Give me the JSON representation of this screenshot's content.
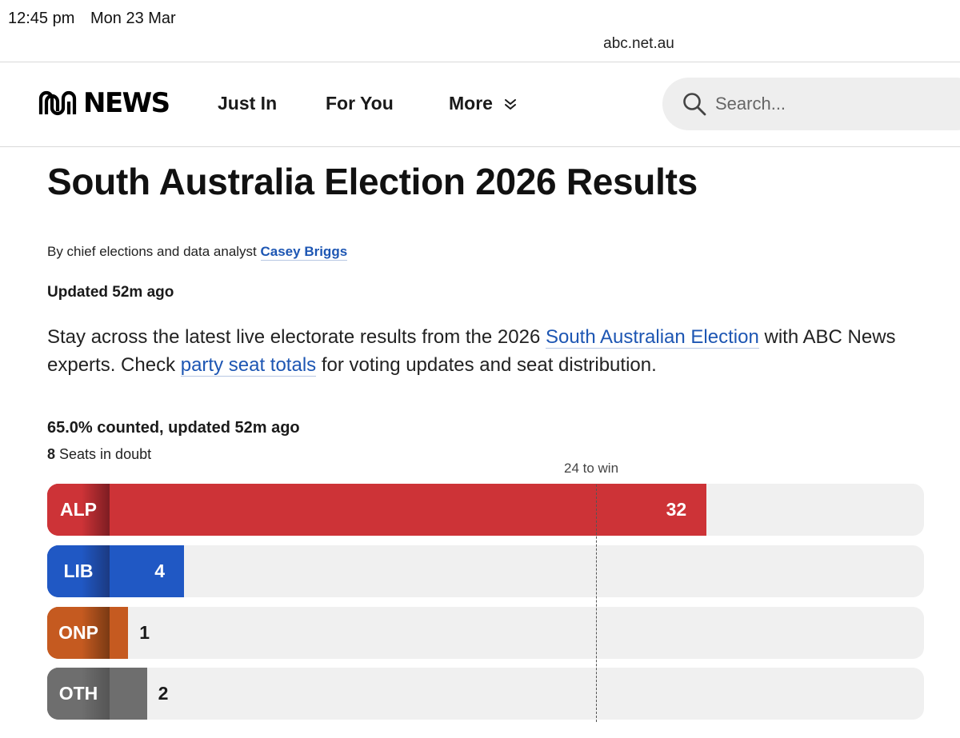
{
  "status_bar": {
    "time": "12:45 pm",
    "date": "Mon 23 Mar"
  },
  "browser": {
    "url": "abc.net.au"
  },
  "nav": {
    "logo_text": "NEWS",
    "links": [
      {
        "label": "Just In"
      },
      {
        "label": "For You"
      },
      {
        "label": "More"
      }
    ],
    "search_placeholder": "Search..."
  },
  "article": {
    "title": "South Australia Election 2026 Results",
    "byline_prefix": "By chief elections and data analyst ",
    "author": "Casey Briggs",
    "updated": "Updated 52m ago",
    "intro_part1": "Stay across the latest live electorate results from the 2026 ",
    "intro_link1": "South Australian Election",
    "intro_part2": " with ABC News experts. Check ",
    "intro_link2": "party seat totals",
    "intro_part3": " for voting updates and seat distribution."
  },
  "results": {
    "counted": "65.0% counted, updated 52m ago",
    "seats_in_doubt_count": "8",
    "seats_in_doubt_label": " Seats in doubt",
    "win_label": "24 to win",
    "parties": [
      {
        "code": "ALP",
        "seats": 32,
        "color": "#cd3337",
        "tab_color": "#7d1d22"
      },
      {
        "code": "LIB",
        "seats": 4,
        "color": "#2058c4",
        "tab_color": "#1b3a82"
      },
      {
        "code": "ONP",
        "seats": 1,
        "color": "#c55a20",
        "tab_color": "#7a3a14"
      },
      {
        "code": "OTH",
        "seats": 2,
        "color": "#6e6e6e",
        "tab_color": "#555555"
      }
    ]
  }
}
